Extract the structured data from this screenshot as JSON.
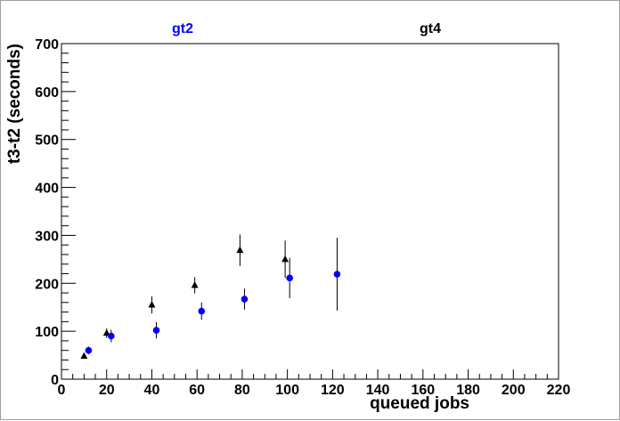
{
  "chart_data": {
    "type": "scatter",
    "xlabel": "queued jobs",
    "ylabel": "t3-t2 (seconds)",
    "xlim": [
      0,
      220
    ],
    "ylim": [
      0,
      700
    ],
    "x_major_ticks": [
      0,
      20,
      40,
      60,
      80,
      100,
      120,
      140,
      160,
      180,
      200,
      220
    ],
    "y_major_ticks": [
      0,
      100,
      200,
      300,
      400,
      500,
      600,
      700
    ],
    "grid": false,
    "series": [
      {
        "name": "gt2",
        "color": "#0000ff",
        "marker": "circle",
        "points": [
          {
            "x": 12,
            "y": 60,
            "err": 8
          },
          {
            "x": 22,
            "y": 90,
            "err": 13
          },
          {
            "x": 42,
            "y": 102,
            "err": 17
          },
          {
            "x": 62,
            "y": 142,
            "err": 18
          },
          {
            "x": 81,
            "y": 167,
            "err": 22
          },
          {
            "x": 101,
            "y": 211,
            "err": 42
          },
          {
            "x": 122,
            "y": 219,
            "err": 76
          }
        ]
      },
      {
        "name": "gt4",
        "color": "#000000",
        "marker": "triangle",
        "points": [
          {
            "x": 10,
            "y": 48,
            "err": 5
          },
          {
            "x": 20,
            "y": 96,
            "err": 10
          },
          {
            "x": 40,
            "y": 155,
            "err": 18
          },
          {
            "x": 59,
            "y": 196,
            "err": 17
          },
          {
            "x": 79,
            "y": 269,
            "err": 33
          },
          {
            "x": 99,
            "y": 250,
            "err": 39
          }
        ]
      }
    ]
  }
}
